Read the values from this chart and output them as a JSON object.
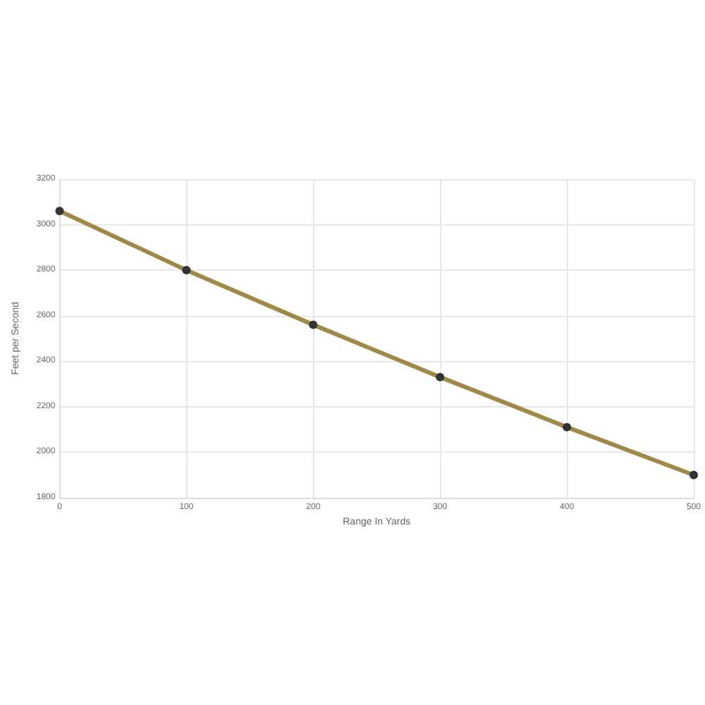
{
  "chart_data": {
    "type": "line",
    "xlabel": "Range In Yards",
    "ylabel": "Feet per Second",
    "x": [
      0,
      100,
      200,
      300,
      400,
      500
    ],
    "series": [
      {
        "color": "#a08848",
        "values": [
          3060,
          2800,
          2560,
          2330,
          2110,
          1900
        ]
      }
    ],
    "xlim": [
      0,
      500
    ],
    "xticks": [
      0,
      100,
      200,
      300,
      400,
      500
    ],
    "ylim": [
      1800,
      3200
    ],
    "yticks": [
      1800,
      2000,
      2200,
      2400,
      2600,
      2800,
      3000,
      3200
    ],
    "grid": true,
    "marker": "circle",
    "line_style": "solid"
  }
}
